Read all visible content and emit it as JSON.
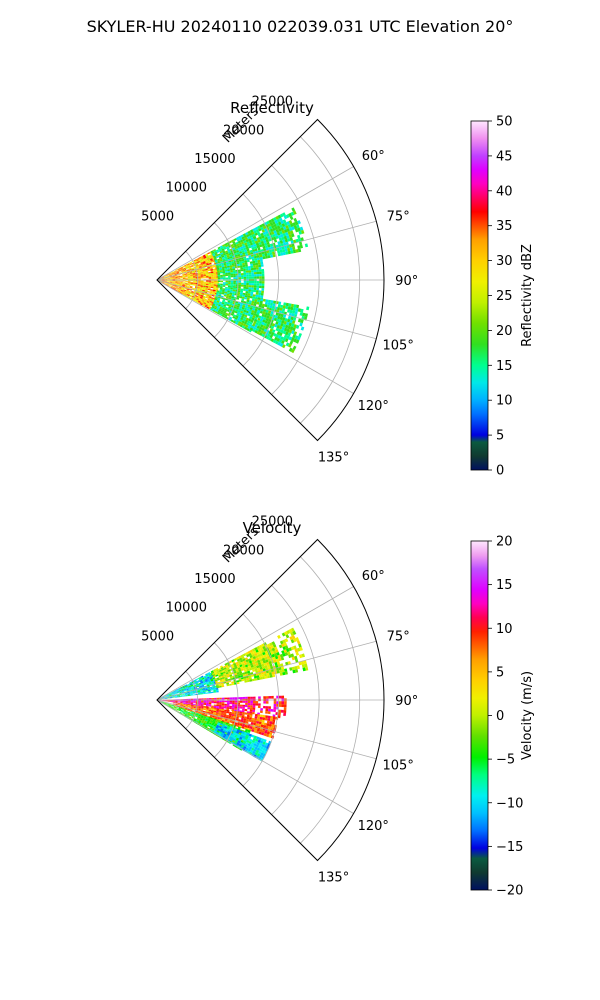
{
  "suptitle": "SKYLER-HU  20240110  022039.031 UTC Elevation 20°",
  "chart_data": [
    {
      "type": "heatmap",
      "subtype": "polar-sector",
      "title": "Reflectivity",
      "r_label": "Meters",
      "r_ticks": [
        5000,
        10000,
        15000,
        20000,
        25000
      ],
      "r_tick_labels": [
        "5000",
        "10000",
        "15000",
        "20000",
        "25000"
      ],
      "r_max": 28000,
      "theta_ticks_deg": [
        60,
        75,
        90,
        105,
        120,
        135
      ],
      "theta_tick_labels": [
        "60°",
        "75°",
        "90°",
        "105°",
        "120°",
        "135°"
      ],
      "theta_range_deg": [
        45,
        135
      ],
      "grid": true,
      "colorbar": {
        "label": "Reflectivity dBZ",
        "range": [
          0,
          50
        ],
        "ticks": [
          0,
          5,
          10,
          15,
          20,
          25,
          30,
          35,
          40,
          45,
          50
        ],
        "tick_labels": [
          "0",
          "5",
          "10",
          "15",
          "20",
          "25",
          "30",
          "35",
          "40",
          "45",
          "50"
        ]
      },
      "regions": [
        {
          "r_range": [
            0,
            3500
          ],
          "az_range": [
            62,
            118
          ],
          "value_range": [
            28,
            38
          ]
        },
        {
          "r_range": [
            3500,
            7500
          ],
          "az_range": [
            62,
            118
          ],
          "value_range": [
            26,
            38
          ]
        },
        {
          "r_range": [
            7500,
            13000
          ],
          "az_range": [
            62,
            118
          ],
          "value_range": [
            14,
            22
          ]
        },
        {
          "r_range": [
            13000,
            19000
          ],
          "az_range": [
            62,
            78
          ],
          "value_range": [
            14,
            22
          ]
        },
        {
          "r_range": [
            13000,
            19000
          ],
          "az_range": [
            100,
            118
          ],
          "value_range": [
            14,
            22
          ]
        }
      ]
    },
    {
      "type": "heatmap",
      "subtype": "polar-sector",
      "title": "Velocity",
      "r_label": "Meters",
      "r_ticks": [
        5000,
        10000,
        15000,
        20000,
        25000
      ],
      "r_tick_labels": [
        "5000",
        "10000",
        "15000",
        "20000",
        "25000"
      ],
      "r_max": 28000,
      "theta_ticks_deg": [
        60,
        75,
        90,
        105,
        120,
        135
      ],
      "theta_tick_labels": [
        "60°",
        "75°",
        "90°",
        "105°",
        "120°",
        "135°"
      ],
      "theta_range_deg": [
        45,
        135
      ],
      "grid": true,
      "colorbar": {
        "label": "Velocity (m/s)",
        "range": [
          -20,
          20
        ],
        "ticks": [
          -20,
          -15,
          -10,
          -5,
          0,
          5,
          10,
          15,
          20
        ],
        "tick_labels": [
          "−20",
          "−15",
          "−10",
          "−5",
          "0",
          "5",
          "10",
          "15",
          "20"
        ]
      },
      "regions": [
        {
          "r_range": [
            0,
            7500
          ],
          "az_range": [
            62,
            82
          ],
          "value_range": [
            -12,
            -4
          ]
        },
        {
          "r_range": [
            7500,
            19000
          ],
          "az_range": [
            62,
            78
          ],
          "value_range": [
            -3,
            5
          ]
        },
        {
          "r_range": [
            0,
            16000
          ],
          "az_range": [
            88,
            98
          ],
          "value_range": [
            8,
            18
          ]
        },
        {
          "r_range": [
            2000,
            15000
          ],
          "az_range": [
            98,
            108
          ],
          "value_range": [
            6,
            12
          ]
        },
        {
          "r_range": [
            0,
            12000
          ],
          "az_range": [
            108,
            120
          ],
          "value_range": [
            -6,
            0
          ]
        },
        {
          "r_range": [
            8000,
            15000
          ],
          "az_range": [
            110,
            120
          ],
          "value_range": [
            -12,
            -6
          ]
        }
      ]
    }
  ]
}
